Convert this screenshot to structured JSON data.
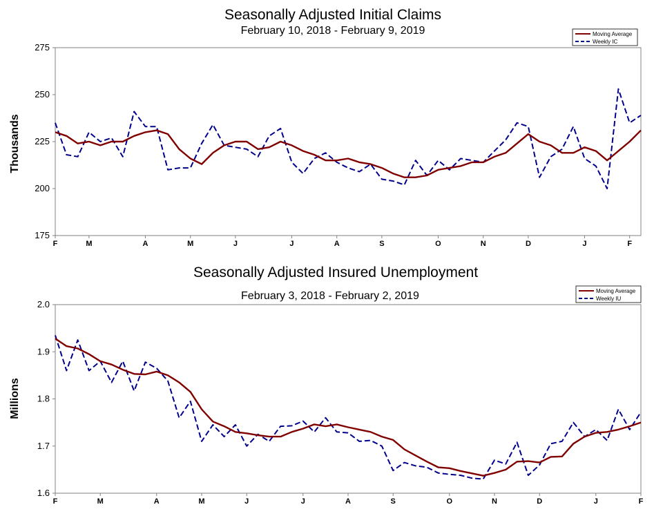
{
  "chart_data": [
    {
      "type": "line",
      "title": "Seasonally Adjusted Initial Claims",
      "subtitle": "February 10, 2018 - February 9, 2019",
      "ylabel": "Thousands",
      "xlabel": "",
      "ylim": [
        175,
        275
      ],
      "yticks": [
        175,
        200,
        225,
        250,
        275
      ],
      "xlim": [
        0,
        52
      ],
      "xticks": [
        {
          "label": "F",
          "pos": 0
        },
        {
          "label": "M",
          "pos": 3
        },
        {
          "label": "A",
          "pos": 8
        },
        {
          "label": "M",
          "pos": 12
        },
        {
          "label": "J",
          "pos": 16
        },
        {
          "label": "J",
          "pos": 21
        },
        {
          "label": "A",
          "pos": 25
        },
        {
          "label": "S",
          "pos": 29
        },
        {
          "label": "O",
          "pos": 34
        },
        {
          "label": "N",
          "pos": 38
        },
        {
          "label": "D",
          "pos": 42
        },
        {
          "label": "J",
          "pos": 47
        },
        {
          "label": "F",
          "pos": 51
        }
      ],
      "grid": false,
      "legend": "top-right",
      "series": [
        {
          "name": "Moving Average",
          "color": "#800000",
          "style": "solid",
          "values": [
            230,
            228,
            224,
            225,
            223,
            225,
            225,
            228,
            230,
            231,
            229,
            221,
            216,
            213,
            219,
            223,
            225,
            225,
            221,
            222,
            225,
            223,
            220,
            218,
            215,
            215,
            216,
            214,
            213,
            211,
            208,
            206,
            206,
            207,
            210,
            211,
            212,
            214,
            214,
            217,
            219,
            224,
            229,
            225,
            223,
            219,
            219,
            222,
            220,
            215,
            220,
            225,
            231
          ]
        },
        {
          "name": "Weekly IC",
          "color": "#00008b",
          "style": "dashed",
          "values": [
            235,
            218,
            217,
            230,
            225,
            227,
            217,
            241,
            233,
            233,
            210,
            211,
            211,
            224,
            234,
            223,
            222,
            221,
            217,
            228,
            232,
            214,
            208,
            216,
            219,
            214,
            211,
            209,
            213,
            205,
            204,
            202,
            215,
            207,
            215,
            210,
            216,
            215,
            214,
            220,
            226,
            235,
            233,
            206,
            217,
            221,
            233,
            216,
            212,
            200,
            253,
            235,
            239
          ]
        }
      ]
    },
    {
      "type": "line",
      "title": "Seasonally Adjusted Insured Unemployment",
      "subtitle": "February 3, 2018 - February 2, 2019",
      "ylabel": "Millions",
      "xlabel": "",
      "ylim": [
        1.6,
        2.0
      ],
      "yticks": [
        "1.6",
        "1.7",
        "1.8",
        "1.9",
        "2.0"
      ],
      "xlim": [
        0,
        52
      ],
      "xticks": [
        {
          "label": "F",
          "pos": 0
        },
        {
          "label": "M",
          "pos": 4
        },
        {
          "label": "A",
          "pos": 9
        },
        {
          "label": "M",
          "pos": 13
        },
        {
          "label": "J",
          "pos": 17
        },
        {
          "label": "J",
          "pos": 22
        },
        {
          "label": "A",
          "pos": 26
        },
        {
          "label": "S",
          "pos": 30
        },
        {
          "label": "O",
          "pos": 35
        },
        {
          "label": "N",
          "pos": 39
        },
        {
          "label": "D",
          "pos": 43
        },
        {
          "label": "J",
          "pos": 48
        },
        {
          "label": "F",
          "pos": 52
        }
      ],
      "grid": false,
      "legend": "top-right",
      "series": [
        {
          "name": "Moving Average",
          "color": "#800000",
          "style": "solid",
          "values": [
            1.928,
            1.912,
            1.907,
            1.895,
            1.88,
            1.873,
            1.862,
            1.853,
            1.852,
            1.858,
            1.85,
            1.835,
            1.815,
            1.778,
            1.752,
            1.742,
            1.73,
            1.727,
            1.723,
            1.72,
            1.72,
            1.73,
            1.737,
            1.746,
            1.742,
            1.746,
            1.74,
            1.735,
            1.73,
            1.72,
            1.713,
            1.693,
            1.68,
            1.667,
            1.655,
            1.653,
            1.647,
            1.642,
            1.637,
            1.643,
            1.65,
            1.667,
            1.668,
            1.665,
            1.677,
            1.678,
            1.705,
            1.72,
            1.728,
            1.73,
            1.735,
            1.742,
            1.75
          ]
        },
        {
          "name": "Weekly IU",
          "color": "#00008b",
          "style": "dashed",
          "values": [
            1.935,
            1.86,
            1.925,
            1.86,
            1.88,
            1.835,
            1.88,
            1.817,
            1.878,
            1.865,
            1.838,
            1.76,
            1.795,
            1.71,
            1.745,
            1.72,
            1.745,
            1.7,
            1.725,
            1.71,
            1.742,
            1.743,
            1.753,
            1.73,
            1.76,
            1.73,
            1.728,
            1.71,
            1.712,
            1.7,
            1.648,
            1.665,
            1.658,
            1.655,
            1.643,
            1.64,
            1.638,
            1.632,
            1.63,
            1.67,
            1.662,
            1.708,
            1.638,
            1.66,
            1.705,
            1.71,
            1.75,
            1.72,
            1.735,
            1.712,
            1.778,
            1.735,
            1.772
          ]
        }
      ]
    }
  ]
}
